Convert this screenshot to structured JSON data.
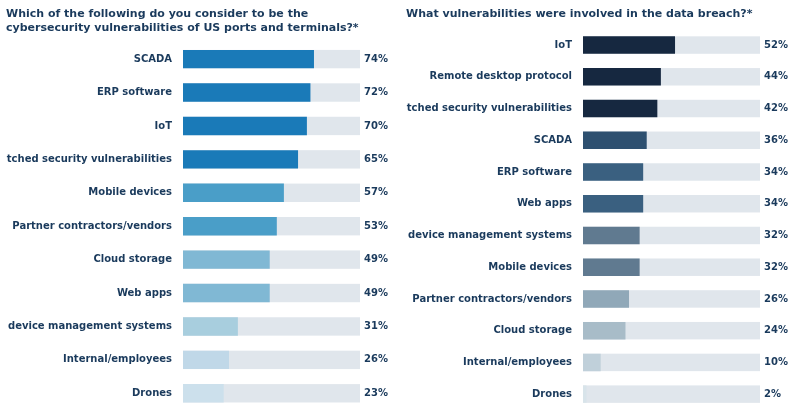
{
  "chart_data": [
    {
      "type": "bar",
      "orientation": "horizontal",
      "title": [
        "Which of the following do you consider to be the",
        "cybersecurity vulnerabilities of US ports and terminals?*"
      ],
      "categories": [
        "SCADA",
        "ERP software",
        "IoT",
        "Unpatched security vulnerabilities",
        "Mobile devices",
        "Partner contractors/vendors",
        "Cloud storage",
        "Web apps",
        "Field device management systems",
        "Internal/employees",
        "Drones"
      ],
      "values": [
        74,
        72,
        70,
        65,
        57,
        53,
        49,
        49,
        31,
        26,
        23
      ],
      "value_labels": [
        "74%",
        "72%",
        "70%",
        "65%",
        "57%",
        "53%",
        "49%",
        "49%",
        "31%",
        "26%",
        "23%"
      ],
      "colors": [
        "#1a7ab8",
        "#1a7ab8",
        "#1a7ab8",
        "#1a7ab8",
        "#4a9ec8",
        "#4a9ec8",
        "#80b8d4",
        "#80b8d4",
        "#a8cede",
        "#c0d8e8",
        "#cce0ec"
      ],
      "xlim": [
        0,
        100
      ],
      "grid": false,
      "legend": false,
      "data_labels": true,
      "tick_labels": "y"
    },
    {
      "type": "bar",
      "orientation": "horizontal",
      "title": "What vulnerabilities were involved in the data breach?*",
      "categories": [
        "IoT",
        "Remote desktop protocol",
        "Unpatched security vulnerabilities",
        "SCADA",
        "ERP software",
        "Web apps",
        "Field device management systems",
        "Mobile devices",
        "Partner contractors/vendors",
        "Cloud storage",
        "Internal/employees",
        "Drones"
      ],
      "values": [
        52,
        44,
        42,
        36,
        34,
        34,
        32,
        32,
        26,
        24,
        10,
        2
      ],
      "value_labels": [
        "52%",
        "44%",
        "42%",
        "36%",
        "34%",
        "34%",
        "32%",
        "32%",
        "26%",
        "24%",
        "10%",
        "2%"
      ],
      "colors": [
        "#162840",
        "#162840",
        "#162840",
        "#2e5070",
        "#3a6080",
        "#3a6080",
        "#607a90",
        "#607a90",
        "#90a8b8",
        "#a8bcc8",
        "#c0d0da",
        "#d8e4ea"
      ],
      "xlim": [
        0,
        100
      ],
      "grid": false,
      "legend": false,
      "data_labels": true,
      "tick_labels": "y"
    }
  ]
}
